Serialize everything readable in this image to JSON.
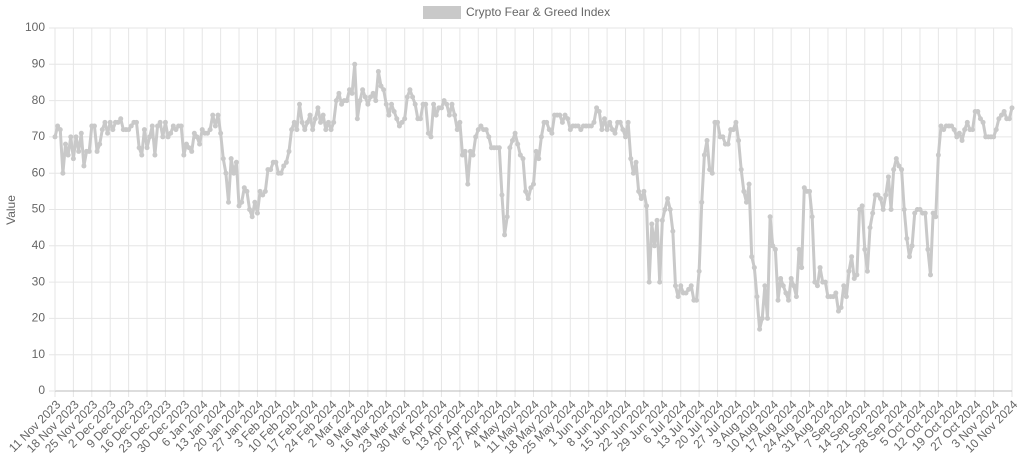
{
  "chart_data": {
    "type": "line",
    "y_label": "Value",
    "ylim": [
      0,
      100
    ],
    "yticks": [
      0,
      10,
      20,
      30,
      40,
      50,
      60,
      70,
      80,
      90,
      100
    ],
    "grid": true,
    "legend": "top",
    "categories": [
      "11 Nov 2023",
      null,
      null,
      null,
      null,
      null,
      null,
      "18 Nov 2023",
      null,
      null,
      null,
      null,
      null,
      null,
      "25 Nov 2023",
      null,
      null,
      null,
      null,
      null,
      null,
      "2 Dec 2023",
      null,
      null,
      null,
      null,
      null,
      null,
      "9 Dec 2023",
      null,
      null,
      null,
      null,
      null,
      null,
      "16 Dec 2023",
      null,
      null,
      null,
      null,
      null,
      null,
      "23 Dec 2023",
      null,
      null,
      null,
      null,
      null,
      null,
      "30 Dec 2023",
      null,
      null,
      null,
      null,
      null,
      null,
      "6 Jan 2024",
      null,
      null,
      null,
      null,
      null,
      null,
      "13 Jan 2024",
      null,
      null,
      null,
      null,
      null,
      null,
      "20 Jan 2024",
      null,
      null,
      null,
      null,
      null,
      null,
      "27 Jan 2024",
      null,
      null,
      null,
      null,
      null,
      null,
      "3 Feb 2024",
      null,
      null,
      null,
      null,
      null,
      null,
      "10 Feb 2024",
      null,
      null,
      null,
      null,
      null,
      null,
      "17 Feb 2024",
      null,
      null,
      null,
      null,
      null,
      null,
      "24 Feb 2024",
      null,
      null,
      null,
      null,
      null,
      null,
      "2 Mar 2024",
      null,
      null,
      null,
      null,
      null,
      null,
      "9 Mar 2024",
      null,
      null,
      null,
      null,
      null,
      null,
      "16 Mar 2024",
      null,
      null,
      null,
      null,
      null,
      null,
      "23 Mar 2024",
      null,
      null,
      null,
      null,
      null,
      null,
      "30 Mar 2024",
      null,
      null,
      null,
      null,
      null,
      null,
      "6 Apr 2024",
      null,
      null,
      null,
      null,
      null,
      null,
      "13 Apr 2024",
      null,
      null,
      null,
      null,
      null,
      null,
      "20 Apr 2024",
      null,
      null,
      null,
      null,
      null,
      null,
      "27 Apr 2024",
      null,
      null,
      null,
      null,
      null,
      null,
      "4 May 2024",
      null,
      null,
      null,
      null,
      null,
      null,
      "11 May 2024",
      null,
      null,
      null,
      null,
      null,
      null,
      "18 May 2024",
      null,
      null,
      null,
      null,
      null,
      null,
      "25 May 2024",
      null,
      null,
      null,
      null,
      null,
      null,
      "1 Jun 2024",
      null,
      null,
      null,
      null,
      null,
      null,
      "8 Jun 2024",
      null,
      null,
      null,
      null,
      null,
      null,
      "15 Jun 2024",
      null,
      null,
      null,
      null,
      null,
      null,
      "22 Jun 2024",
      null,
      null,
      null,
      null,
      null,
      null,
      "29 Jun 2024",
      null,
      null,
      null,
      null,
      null,
      null,
      "6 Jul 2024",
      null,
      null,
      null,
      null,
      null,
      null,
      "13 Jul 2024",
      null,
      null,
      null,
      null,
      null,
      null,
      "20 Jul 2024",
      null,
      null,
      null,
      null,
      null,
      null,
      "27 Jul 2024",
      null,
      null,
      null,
      null,
      null,
      null,
      "3 Aug 2024",
      null,
      null,
      null,
      null,
      null,
      null,
      "10 Aug 2024",
      null,
      null,
      null,
      null,
      null,
      null,
      "17 Aug 2024",
      null,
      null,
      null,
      null,
      null,
      null,
      "24 Aug 2024",
      null,
      null,
      null,
      null,
      null,
      null,
      "31 Aug 2024",
      null,
      null,
      null,
      null,
      null,
      null,
      "7 Sep 2024",
      null,
      null,
      null,
      null,
      null,
      null,
      "14 Sep 2024",
      null,
      null,
      null,
      null,
      null,
      null,
      "21 Sep 2024",
      null,
      null,
      null,
      null,
      null,
      null,
      "28 Sep 2024",
      null,
      null,
      null,
      null,
      null,
      null,
      "5 Oct 2024",
      null,
      null,
      null,
      null,
      null,
      null,
      "12 Oct 2024",
      null,
      null,
      null,
      null,
      null,
      null,
      "19 Oct 2024",
      null,
      null,
      null,
      null,
      null,
      null,
      "27 Oct 2024",
      null,
      null,
      null,
      null,
      null,
      null,
      "3 Nov 2024",
      null,
      null,
      null,
      null,
      null,
      null,
      "10 Nov 2024"
    ],
    "series": [
      {
        "name": "Crypto Fear & Greed Index",
        "color": "#c9c9c9",
        "values": [
          70,
          73,
          72,
          60,
          68,
          65,
          70,
          64,
          70,
          66,
          71,
          62,
          66,
          66,
          73,
          73,
          66,
          68,
          72,
          74,
          71,
          74,
          72,
          74,
          74,
          75,
          72,
          72,
          72,
          73,
          74,
          74,
          67,
          65,
          72,
          67,
          70,
          73,
          65,
          73,
          74,
          70,
          74,
          70,
          71,
          73,
          72,
          73,
          73,
          65,
          68,
          67,
          66,
          71,
          70,
          68,
          72,
          71,
          71,
          72,
          76,
          73,
          76,
          71,
          64,
          60,
          52,
          64,
          60,
          63,
          51,
          52,
          56,
          55,
          50,
          48,
          52,
          49,
          55,
          54,
          55,
          61,
          61,
          63,
          63,
          60,
          60,
          62,
          63,
          66,
          72,
          74,
          72,
          79,
          74,
          72,
          74,
          76,
          72,
          75,
          78,
          74,
          76,
          72,
          74,
          72,
          74,
          80,
          82,
          79,
          80,
          80,
          83,
          82,
          90,
          75,
          80,
          83,
          81,
          79,
          81,
          82,
          80,
          88,
          84,
          83,
          79,
          76,
          79,
          77,
          75,
          73,
          74,
          75,
          81,
          83,
          81,
          79,
          75,
          75,
          79,
          79,
          71,
          70,
          79,
          76,
          78,
          78,
          80,
          79,
          76,
          79,
          76,
          72,
          74,
          65,
          66,
          57,
          66,
          65,
          70,
          72,
          73,
          72,
          72,
          70,
          67,
          67,
          67,
          67,
          54,
          43,
          48,
          67,
          69,
          71,
          68,
          65,
          64,
          55,
          53,
          56,
          57,
          66,
          64,
          70,
          74,
          74,
          72,
          71,
          76,
          76,
          76,
          74,
          76,
          75,
          72,
          73,
          73,
          73,
          72,
          73,
          73,
          73,
          73,
          74,
          78,
          77,
          72,
          75,
          72,
          74,
          72,
          71,
          74,
          74,
          72,
          70,
          74,
          64,
          60,
          63,
          55,
          53,
          55,
          51,
          30,
          46,
          40,
          47,
          30,
          47,
          50,
          53,
          50,
          44,
          29,
          26,
          29,
          27,
          27,
          28,
          29,
          25,
          25,
          33,
          52,
          65,
          69,
          61,
          60,
          74,
          74,
          70,
          70,
          68,
          68,
          72,
          72,
          74,
          69,
          61,
          55,
          52,
          57,
          37,
          34,
          26,
          17,
          20,
          29,
          20,
          48,
          40,
          39,
          25,
          31,
          29,
          27,
          25,
          31,
          29,
          26,
          39,
          34,
          56,
          55,
          55,
          48,
          30,
          29,
          34,
          30,
          30,
          26,
          26,
          26,
          27,
          22,
          23,
          29,
          26,
          33,
          37,
          31,
          32,
          50,
          51,
          39,
          33,
          45,
          49,
          54,
          54,
          53,
          50,
          54,
          59,
          50,
          61,
          64,
          62,
          61,
          50,
          42,
          37,
          40,
          49,
          50,
          50,
          49,
          49,
          39,
          32,
          49,
          48,
          65,
          73,
          72,
          73,
          73,
          73,
          72,
          70,
          71,
          69,
          72,
          74,
          72,
          72,
          77,
          77,
          75,
          74,
          70,
          70,
          70,
          70,
          72,
          75,
          76,
          77,
          75,
          75,
          78
        ]
      }
    ]
  }
}
